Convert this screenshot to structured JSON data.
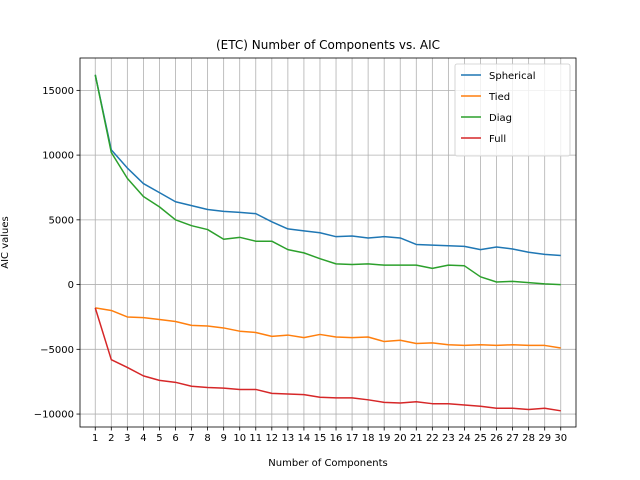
{
  "chart_data": {
    "type": "line",
    "title": "(ETC) Number of Components vs. AIC",
    "xlabel": "Number of Components",
    "ylabel": "AIC values",
    "x": [
      1,
      2,
      3,
      4,
      5,
      6,
      7,
      8,
      9,
      10,
      11,
      12,
      13,
      14,
      15,
      16,
      17,
      18,
      19,
      20,
      21,
      22,
      23,
      24,
      25,
      26,
      27,
      28,
      29,
      30
    ],
    "xlim": [
      0.05,
      30.95
    ],
    "ylim": [
      -11000,
      17500
    ],
    "yticks": [
      -10000,
      -5000,
      0,
      5000,
      10000,
      15000
    ],
    "ytick_labels": [
      "−10000",
      "−5000",
      "0",
      "5000",
      "10000",
      "15000"
    ],
    "grid": true,
    "legend_position": "top-right",
    "series": [
      {
        "name": "Spherical",
        "color": "#1f77b4",
        "values": [
          16200,
          10400,
          9000,
          7800,
          7100,
          6400,
          6100,
          5800,
          5650,
          5580,
          5480,
          4850,
          4300,
          4150,
          4000,
          3700,
          3750,
          3600,
          3700,
          3600,
          3100,
          3050,
          3000,
          2950,
          2700,
          2900,
          2750,
          2500,
          2330,
          2250
        ]
      },
      {
        "name": "Tied",
        "color": "#ff7f0e",
        "values": [
          -1800,
          -2000,
          -2500,
          -2550,
          -2700,
          -2850,
          -3150,
          -3200,
          -3350,
          -3600,
          -3700,
          -4000,
          -3900,
          -4100,
          -3850,
          -4050,
          -4100,
          -4050,
          -4400,
          -4300,
          -4550,
          -4500,
          -4650,
          -4700,
          -4650,
          -4700,
          -4650,
          -4700,
          -4700,
          -4900
        ]
      },
      {
        "name": "Diag",
        "color": "#2ca02c",
        "values": [
          16200,
          10200,
          8200,
          6800,
          6000,
          5000,
          4550,
          4250,
          3500,
          3650,
          3350,
          3350,
          2700,
          2450,
          2000,
          1600,
          1550,
          1600,
          1500,
          1500,
          1500,
          1250,
          1500,
          1450,
          600,
          200,
          250,
          150,
          50,
          0
        ]
      },
      {
        "name": "Full",
        "color": "#d62728",
        "values": [
          -1800,
          -5800,
          -6400,
          -7050,
          -7400,
          -7550,
          -7850,
          -7950,
          -8000,
          -8100,
          -8100,
          -8400,
          -8450,
          -8500,
          -8700,
          -8750,
          -8750,
          -8900,
          -9100,
          -9150,
          -9050,
          -9200,
          -9200,
          -9300,
          -9400,
          -9550,
          -9550,
          -9650,
          -9550,
          -9750
        ]
      }
    ]
  }
}
